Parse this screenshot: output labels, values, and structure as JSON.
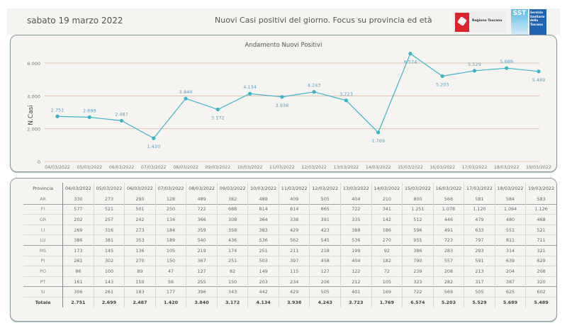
{
  "header": {
    "date": "sabato 19 marzo 2022",
    "title": "Nuovi Casi positivi del giorno. Focus su provincia ed età",
    "logo_regione": "Regione Toscana",
    "logo_sst_short": "SST",
    "logo_sst_lines": [
      "Servizio",
      "Sanitario",
      "della",
      "Toscana"
    ]
  },
  "chart_data": {
    "type": "line",
    "title": "Andamento Nuovi Positivi",
    "xlabel": "",
    "ylabel": "N.Casi",
    "ylim": [
      0,
      7000
    ],
    "yticks": [
      0,
      2000,
      4000,
      6000
    ],
    "ytick_labels": [
      "0",
      "2.000",
      "4.000",
      "6.000"
    ],
    "grid": true,
    "color": "#3bb3c8",
    "categories": [
      "04/03/2022",
      "05/03/2022",
      "06/03/2022",
      "07/03/2022",
      "08/03/2022",
      "09/03/2022",
      "10/03/2022",
      "11/03/2022",
      "12/03/2022",
      "13/03/2022",
      "14/03/2022",
      "15/03/2022",
      "16/03/2022",
      "17/03/2022",
      "18/03/2022",
      "19/03/2022"
    ],
    "values": [
      2751,
      2699,
      2487,
      1420,
      3840,
      3172,
      4134,
      3938,
      4243,
      3723,
      1769,
      6574,
      5203,
      5529,
      5689,
      5489
    ],
    "data_labels": [
      "2.751",
      "2.699",
      "2.487",
      "1.420",
      "3.840",
      "3.172",
      "4.134",
      "3.938",
      "4.243",
      "3.723",
      "1.769",
      "6.574",
      "5.203",
      "5.529",
      "5.689",
      "5.489"
    ],
    "label_positions": [
      "above",
      "above",
      "above",
      "below",
      "above",
      "below",
      "above",
      "below",
      "above",
      "above",
      "below",
      "below",
      "below",
      "above",
      "above",
      "below"
    ]
  },
  "table": {
    "header_label": "Provincia",
    "columns": [
      "04/03/2022",
      "05/03/2022",
      "06/03/2022",
      "07/03/2022",
      "08/03/2022",
      "09/03/2022",
      "10/03/2022",
      "11/03/2022",
      "12/03/2022",
      "13/03/2022",
      "14/03/2022",
      "15/03/2022",
      "16/03/2022",
      "17/03/2022",
      "18/03/2022",
      "19/03/2022"
    ],
    "rows": [
      {
        "provincia": "AR",
        "values": [
          "330",
          "273",
          "290",
          "128",
          "489",
          "382",
          "489",
          "409",
          "505",
          "404",
          "210",
          "800",
          "566",
          "581",
          "584",
          "583"
        ]
      },
      {
        "provincia": "FI",
        "values": [
          "577",
          "521",
          "501",
          "250",
          "722",
          "688",
          "814",
          "814",
          "865",
          "722",
          "341",
          "1.251",
          "1.078",
          "1.120",
          "1.094",
          "1.126"
        ]
      },
      {
        "provincia": "GR",
        "values": [
          "202",
          "257",
          "242",
          "134",
          "366",
          "308",
          "364",
          "338",
          "391",
          "335",
          "142",
          "512",
          "446",
          "479",
          "480",
          "468"
        ]
      },
      {
        "provincia": "LI",
        "values": [
          "269",
          "316",
          "273",
          "184",
          "359",
          "358",
          "383",
          "429",
          "423",
          "388",
          "186",
          "596",
          "491",
          "633",
          "551",
          "521"
        ]
      },
      {
        "provincia": "LU",
        "values": [
          "386",
          "381",
          "353",
          "189",
          "540",
          "436",
          "536",
          "562",
          "545",
          "536",
          "270",
          "955",
          "723",
          "797",
          "811",
          "711"
        ]
      },
      {
        "provincia": "MS",
        "values": [
          "173",
          "145",
          "136",
          "105",
          "219",
          "174",
          "251",
          "211",
          "218",
          "199",
          "92",
          "386",
          "283",
          "293",
          "314",
          "321"
        ]
      },
      {
        "provincia": "PI",
        "values": [
          "261",
          "302",
          "270",
          "150",
          "367",
          "251",
          "503",
          "397",
          "458",
          "404",
          "182",
          "790",
          "557",
          "591",
          "639",
          "629"
        ]
      },
      {
        "provincia": "PO",
        "values": [
          "86",
          "100",
          "89",
          "47",
          "127",
          "82",
          "149",
          "115",
          "127",
          "122",
          "72",
          "239",
          "208",
          "213",
          "204",
          "208"
        ]
      },
      {
        "provincia": "PT",
        "values": [
          "161",
          "143",
          "150",
          "56",
          "255",
          "150",
          "203",
          "234",
          "206",
          "212",
          "105",
          "323",
          "282",
          "317",
          "387",
          "320"
        ]
      },
      {
        "provincia": "SI",
        "values": [
          "306",
          "261",
          "183",
          "177",
          "396",
          "343",
          "442",
          "429",
          "505",
          "401",
          "169",
          "722",
          "569",
          "505",
          "625",
          "602"
        ]
      }
    ],
    "total_label": "Totale",
    "totals": [
      "2.751",
      "2.699",
      "2.487",
      "1.420",
      "3.840",
      "3.172",
      "4.134",
      "3.938",
      "4.243",
      "3.723",
      "1.769",
      "6.574",
      "5.203",
      "5.529",
      "5.689",
      "5.489"
    ]
  }
}
